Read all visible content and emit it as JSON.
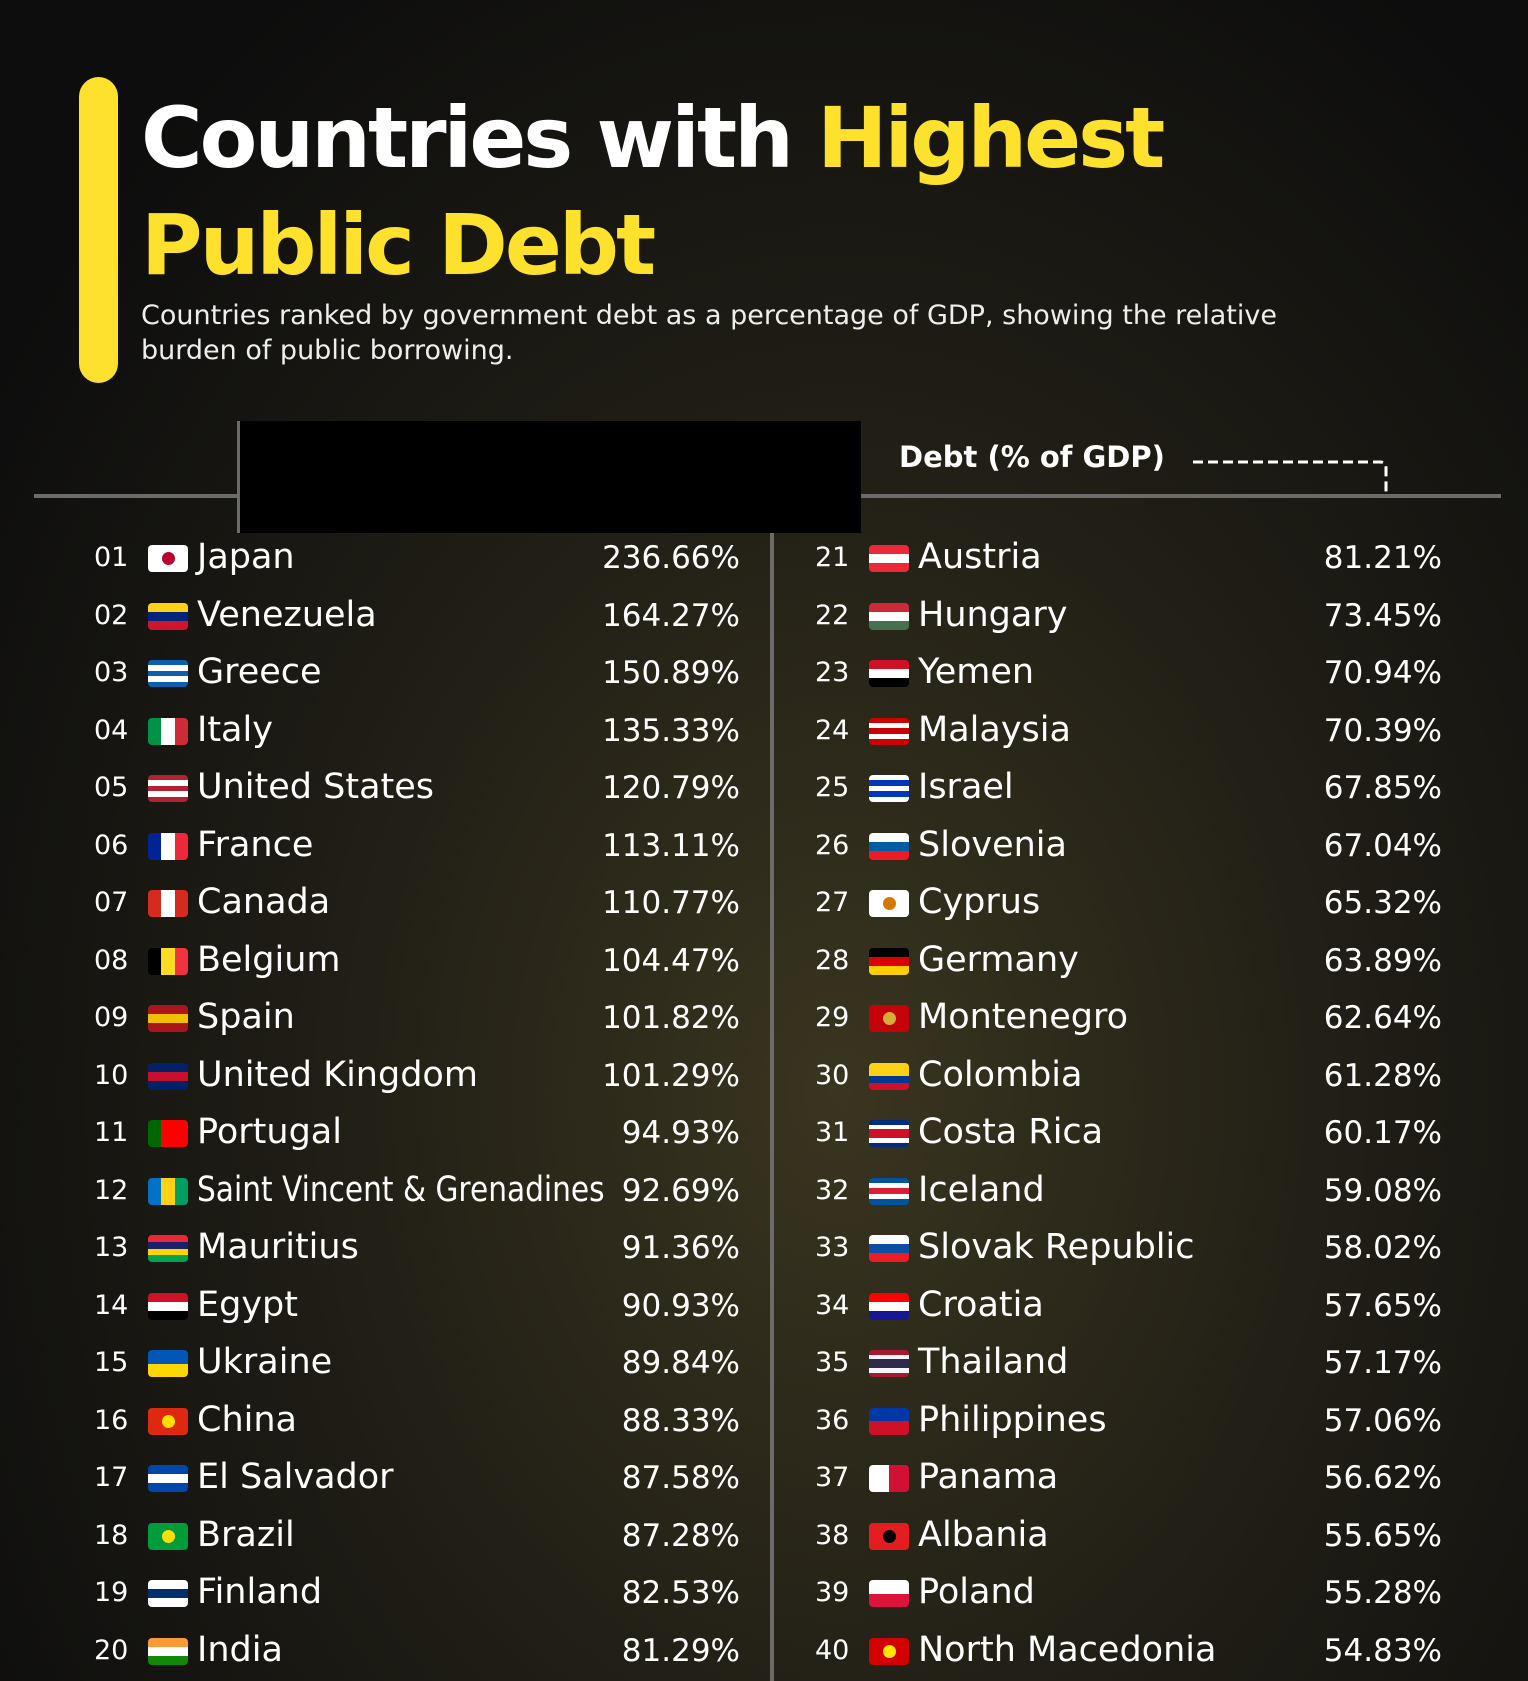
{
  "header": {
    "title": [
      "Countries with",
      "Highest",
      "Public Debt"
    ],
    "subtitle": "Countries ranked by government debt as a percentage of GDP, showing the relative burden of public borrowing."
  },
  "table": {
    "column_header": "Debt (% of GDP)",
    "rows": [
      [
        "01",
        "Japan",
        "236.66%"
      ],
      [
        "02",
        "Venezuela",
        "164.27%"
      ],
      [
        "03",
        "Greece",
        "150.89%"
      ],
      [
        "04",
        "Italy",
        "135.33%"
      ],
      [
        "05",
        "United States",
        "120.79%"
      ],
      [
        "06",
        "France",
        "113.11%"
      ],
      [
        "07",
        "Canada",
        "110.77%"
      ],
      [
        "08",
        "Belgium",
        "104.47%"
      ],
      [
        "09",
        "Spain",
        "101.82%"
      ],
      [
        "10",
        "United Kingdom",
        "101.29%"
      ],
      [
        "11",
        "Portugal",
        "94.93%"
      ],
      [
        "12",
        "Saint Vincent & Grenadines",
        "92.69%"
      ],
      [
        "13",
        "Mauritius",
        "91.36%"
      ],
      [
        "14",
        "Egypt",
        "90.93%"
      ],
      [
        "15",
        "Ukraine",
        "89.84%"
      ],
      [
        "16",
        "China",
        "88.33%"
      ],
      [
        "17",
        "El Salvador",
        "87.58%"
      ],
      [
        "18",
        "Brazil",
        "87.28%"
      ],
      [
        "19",
        "Finland",
        "82.53%"
      ],
      [
        "20",
        "India",
        "81.29%"
      ],
      [
        "21",
        "Austria",
        "81.21%"
      ],
      [
        "22",
        "Hungary",
        "73.45%"
      ],
      [
        "23",
        "Yemen",
        "70.94%"
      ],
      [
        "24",
        "Malaysia",
        "70.39%"
      ],
      [
        "25",
        "Israel",
        "67.85%"
      ],
      [
        "26",
        "Slovenia",
        "67.04%"
      ],
      [
        "27",
        "Cyprus",
        "65.32%"
      ],
      [
        "28",
        "Germany",
        "63.89%"
      ],
      [
        "29",
        "Montenegro",
        "62.64%"
      ],
      [
        "30",
        "Colombia",
        "61.28%"
      ],
      [
        "31",
        "Costa Rica",
        "60.17%"
      ],
      [
        "32",
        "Iceland",
        "59.08%"
      ],
      [
        "33",
        "Slovak Republic",
        "58.02%"
      ],
      [
        "34",
        "Croatia",
        "57.65%"
      ],
      [
        "35",
        "Thailand",
        "57.17%"
      ],
      [
        "36",
        "Philippines",
        "57.06%"
      ],
      [
        "37",
        "Panama",
        "56.62%"
      ],
      [
        "38",
        "Albania",
        "55.65%"
      ],
      [
        "39",
        "Poland",
        "55.28%"
      ],
      [
        "40",
        "North Macedonia",
        "54.83%"
      ]
    ]
  }
}
